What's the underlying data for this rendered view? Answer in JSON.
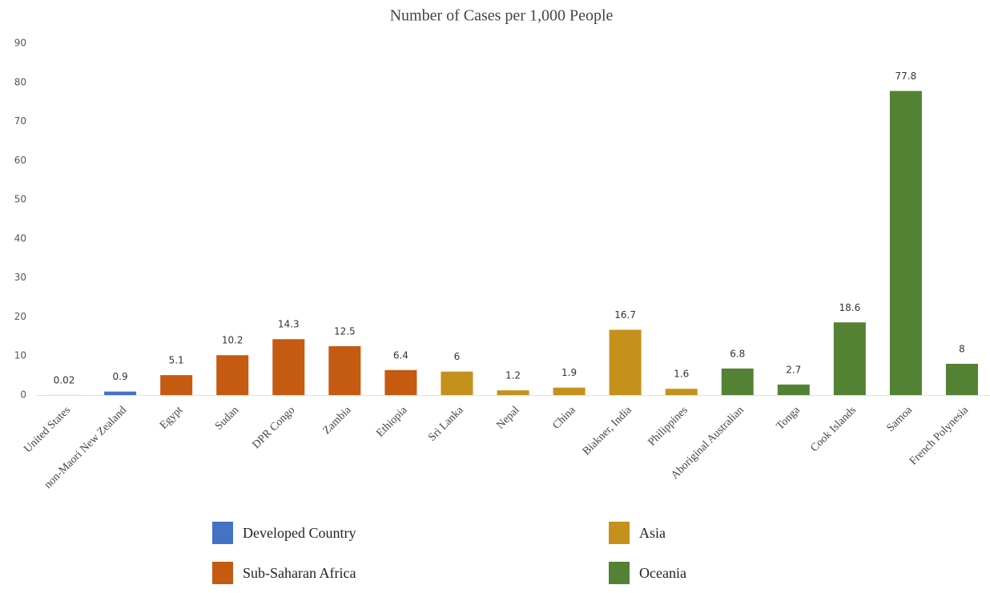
{
  "chart_data": {
    "type": "bar",
    "title": "Number of Cases per 1,000 People",
    "categories": [
      "United States",
      "non-Maori New Zealand",
      "Egypt",
      "Sudan",
      "DPR Congo",
      "Zambia",
      "Ethiopia",
      "Sri Lanka",
      "Nepal",
      "China",
      "Biakner, India",
      "Philippines",
      "Aboriginal Australian",
      "Tonga",
      "Cook Islands",
      "Samoa",
      "French Polynesia"
    ],
    "series": [
      {
        "name": "Developed Country",
        "color": "#4472c4",
        "values": [
          0.02,
          0.9,
          null,
          null,
          null,
          null,
          null,
          null,
          null,
          null,
          null,
          null,
          null,
          null,
          null,
          null,
          null
        ]
      },
      {
        "name": "Sub-Saharan Africa",
        "color": "#c55a11",
        "values": [
          null,
          null,
          5.1,
          10.2,
          14.3,
          12.5,
          6.4,
          null,
          null,
          null,
          null,
          null,
          null,
          null,
          null,
          null,
          null
        ]
      },
      {
        "name": "Asia",
        "color": "#c4911c",
        "values": [
          null,
          null,
          null,
          null,
          null,
          null,
          null,
          6,
          1.2,
          1.9,
          16.7,
          1.6,
          null,
          null,
          null,
          null,
          null
        ]
      },
      {
        "name": "Oceania",
        "color": "#548235",
        "values": [
          null,
          null,
          null,
          null,
          null,
          null,
          null,
          null,
          null,
          null,
          null,
          null,
          6.8,
          2.7,
          18.6,
          77.8,
          8
        ]
      }
    ],
    "ylim": [
      0,
      90
    ],
    "yticks": [
      0,
      10,
      20,
      30,
      40,
      50,
      60,
      70,
      80,
      90
    ],
    "grid": false
  }
}
